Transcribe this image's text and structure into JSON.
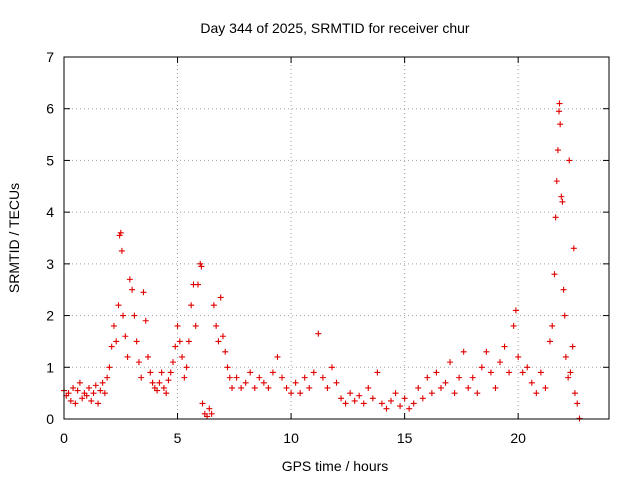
{
  "chart_data": {
    "type": "scatter",
    "title": "Day 344 of 2025, SRMTID for receiver chur",
    "xlabel": "GPS time / hours",
    "ylabel": "SRMTID / TECUs",
    "xlim": [
      0,
      24
    ],
    "ylim": [
      0,
      7
    ],
    "xticks": [
      "0",
      "5",
      "10",
      "15",
      "20"
    ],
    "yticks": [
      "0",
      "1",
      "2",
      "3",
      "4",
      "5",
      "6",
      "7"
    ],
    "grid": true,
    "marker": "plus",
    "color": "#e00000",
    "series": [
      {
        "name": "SRMTID",
        "points": [
          [
            0.0,
            0.55
          ],
          [
            0.1,
            0.45
          ],
          [
            0.2,
            0.5
          ],
          [
            0.3,
            0.35
          ],
          [
            0.4,
            0.6
          ],
          [
            0.5,
            0.3
          ],
          [
            0.6,
            0.55
          ],
          [
            0.7,
            0.7
          ],
          [
            0.8,
            0.4
          ],
          [
            0.9,
            0.5
          ],
          [
            1.0,
            0.45
          ],
          [
            1.1,
            0.6
          ],
          [
            1.2,
            0.35
          ],
          [
            1.3,
            0.5
          ],
          [
            1.4,
            0.65
          ],
          [
            1.5,
            0.3
          ],
          [
            1.6,
            0.55
          ],
          [
            1.7,
            0.7
          ],
          [
            1.8,
            0.5
          ],
          [
            1.9,
            0.8
          ],
          [
            2.0,
            1.0
          ],
          [
            2.1,
            1.4
          ],
          [
            2.2,
            1.8
          ],
          [
            2.3,
            1.5
          ],
          [
            2.4,
            2.2
          ],
          [
            2.45,
            3.55
          ],
          [
            2.5,
            3.6
          ],
          [
            2.55,
            3.25
          ],
          [
            2.6,
            2.0
          ],
          [
            2.7,
            1.6
          ],
          [
            2.8,
            1.2
          ],
          [
            2.9,
            2.7
          ],
          [
            3.0,
            2.5
          ],
          [
            3.1,
            2.0
          ],
          [
            3.2,
            1.5
          ],
          [
            3.3,
            1.1
          ],
          [
            3.4,
            0.8
          ],
          [
            3.5,
            2.45
          ],
          [
            3.6,
            1.9
          ],
          [
            3.7,
            1.2
          ],
          [
            3.8,
            0.9
          ],
          [
            3.9,
            0.7
          ],
          [
            4.0,
            0.6
          ],
          [
            4.1,
            0.55
          ],
          [
            4.2,
            0.7
          ],
          [
            4.3,
            0.9
          ],
          [
            4.4,
            0.6
          ],
          [
            4.5,
            0.5
          ],
          [
            4.6,
            0.75
          ],
          [
            4.7,
            0.9
          ],
          [
            4.8,
            1.1
          ],
          [
            4.9,
            1.4
          ],
          [
            5.0,
            1.8
          ],
          [
            5.1,
            1.5
          ],
          [
            5.2,
            1.2
          ],
          [
            5.3,
            0.8
          ],
          [
            5.4,
            1.0
          ],
          [
            5.5,
            1.5
          ],
          [
            5.6,
            2.2
          ],
          [
            5.7,
            2.6
          ],
          [
            5.8,
            1.8
          ],
          [
            5.9,
            2.6
          ],
          [
            6.0,
            3.0
          ],
          [
            6.05,
            2.95
          ],
          [
            6.1,
            0.3
          ],
          [
            6.2,
            0.1
          ],
          [
            6.3,
            0.05
          ],
          [
            6.4,
            0.2
          ],
          [
            6.5,
            0.1
          ],
          [
            6.6,
            2.2
          ],
          [
            6.7,
            1.8
          ],
          [
            6.8,
            1.5
          ],
          [
            6.9,
            2.35
          ],
          [
            7.0,
            1.6
          ],
          [
            7.1,
            1.3
          ],
          [
            7.2,
            1.0
          ],
          [
            7.3,
            0.8
          ],
          [
            7.4,
            0.6
          ],
          [
            7.6,
            0.8
          ],
          [
            7.8,
            0.6
          ],
          [
            8.0,
            0.7
          ],
          [
            8.2,
            0.9
          ],
          [
            8.4,
            0.6
          ],
          [
            8.6,
            0.8
          ],
          [
            8.8,
            0.7
          ],
          [
            9.0,
            0.6
          ],
          [
            9.2,
            0.9
          ],
          [
            9.4,
            1.2
          ],
          [
            9.6,
            0.8
          ],
          [
            9.8,
            0.6
          ],
          [
            10.0,
            0.5
          ],
          [
            10.2,
            0.7
          ],
          [
            10.4,
            0.5
          ],
          [
            10.6,
            0.8
          ],
          [
            10.8,
            0.6
          ],
          [
            11.0,
            0.9
          ],
          [
            11.2,
            1.65
          ],
          [
            11.4,
            0.8
          ],
          [
            11.6,
            0.6
          ],
          [
            11.8,
            1.0
          ],
          [
            12.0,
            0.7
          ],
          [
            12.2,
            0.4
          ],
          [
            12.4,
            0.3
          ],
          [
            12.6,
            0.5
          ],
          [
            12.8,
            0.35
          ],
          [
            13.0,
            0.45
          ],
          [
            13.2,
            0.3
          ],
          [
            13.4,
            0.6
          ],
          [
            13.6,
            0.4
          ],
          [
            13.8,
            0.9
          ],
          [
            14.0,
            0.3
          ],
          [
            14.2,
            0.2
          ],
          [
            14.4,
            0.35
          ],
          [
            14.6,
            0.5
          ],
          [
            14.8,
            0.25
          ],
          [
            15.0,
            0.4
          ],
          [
            15.2,
            0.2
          ],
          [
            15.4,
            0.3
          ],
          [
            15.6,
            0.6
          ],
          [
            15.8,
            0.4
          ],
          [
            16.0,
            0.8
          ],
          [
            16.2,
            0.5
          ],
          [
            16.4,
            0.9
          ],
          [
            16.6,
            0.6
          ],
          [
            16.8,
            0.7
          ],
          [
            17.0,
            1.1
          ],
          [
            17.2,
            0.5
          ],
          [
            17.4,
            0.8
          ],
          [
            17.6,
            1.3
          ],
          [
            17.8,
            0.6
          ],
          [
            18.0,
            0.8
          ],
          [
            18.2,
            0.5
          ],
          [
            18.4,
            1.0
          ],
          [
            18.6,
            1.3
          ],
          [
            18.8,
            0.9
          ],
          [
            19.0,
            0.6
          ],
          [
            19.2,
            1.1
          ],
          [
            19.4,
            1.4
          ],
          [
            19.6,
            0.9
          ],
          [
            19.8,
            1.8
          ],
          [
            19.9,
            2.1
          ],
          [
            20.0,
            1.2
          ],
          [
            20.2,
            0.9
          ],
          [
            20.4,
            1.0
          ],
          [
            20.6,
            0.7
          ],
          [
            20.8,
            0.5
          ],
          [
            21.0,
            0.9
          ],
          [
            21.2,
            0.6
          ],
          [
            21.4,
            1.5
          ],
          [
            21.5,
            1.8
          ],
          [
            21.6,
            2.8
          ],
          [
            21.65,
            3.9
          ],
          [
            21.7,
            4.6
          ],
          [
            21.75,
            5.2
          ],
          [
            21.8,
            5.95
          ],
          [
            21.82,
            6.1
          ],
          [
            21.85,
            5.7
          ],
          [
            21.9,
            4.3
          ],
          [
            21.95,
            4.2
          ],
          [
            22.0,
            2.5
          ],
          [
            22.05,
            2.0
          ],
          [
            22.1,
            1.2
          ],
          [
            22.2,
            0.8
          ],
          [
            22.25,
            5.0
          ],
          [
            22.3,
            0.9
          ],
          [
            22.4,
            1.4
          ],
          [
            22.45,
            3.3
          ],
          [
            22.5,
            0.5
          ],
          [
            22.6,
            0.3
          ],
          [
            22.7,
            0.01
          ]
        ]
      }
    ]
  }
}
